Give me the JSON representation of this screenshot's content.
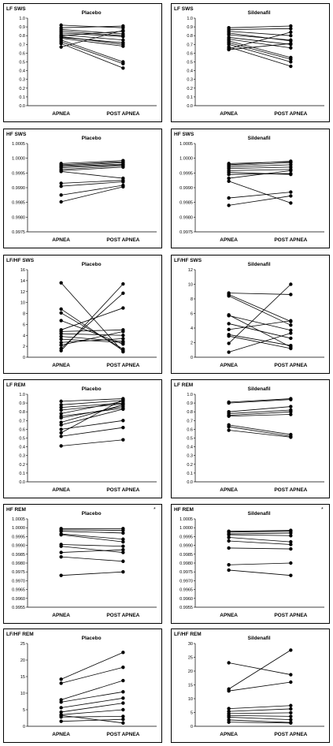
{
  "chart_data": [
    {
      "type": "line",
      "title": "Placebo",
      "ylabel": "LF SWS",
      "star": "",
      "categories": [
        "APNEA",
        "POST APNEA"
      ],
      "ylim": [
        0,
        1
      ],
      "yticks": [
        0,
        0.1,
        0.2,
        0.3,
        0.4,
        0.5,
        0.6,
        0.7,
        0.8,
        0.9,
        1.0
      ],
      "yticklabels": [
        "0.0",
        "0.1",
        "0.2",
        "0.3",
        "0.4",
        "0.5",
        "0.6",
        "0.7",
        "0.8",
        "0.9",
        "1.0"
      ],
      "series": [
        {
          "values": [
            0.92,
            0.89
          ]
        },
        {
          "values": [
            0.89,
            0.91
          ]
        },
        {
          "values": [
            0.87,
            0.82
          ]
        },
        {
          "values": [
            0.85,
            0.8
          ]
        },
        {
          "values": [
            0.83,
            0.79
          ]
        },
        {
          "values": [
            0.81,
            0.75
          ]
        },
        {
          "values": [
            0.79,
            0.7
          ]
        },
        {
          "values": [
            0.77,
            0.68
          ]
        },
        {
          "values": [
            0.75,
            0.5
          ]
        },
        {
          "values": [
            0.73,
            0.48
          ]
        },
        {
          "values": [
            0.71,
            0.43
          ]
        },
        {
          "values": [
            0.67,
            0.86
          ]
        },
        {
          "values": [
            0.8,
            0.85
          ]
        },
        {
          "values": [
            0.78,
            0.72
          ]
        }
      ]
    },
    {
      "type": "line",
      "title": "Sildenafil",
      "ylabel": "LF SWS",
      "star": "",
      "categories": [
        "APNEA",
        "POST APNEA"
      ],
      "ylim": [
        0,
        1
      ],
      "yticks": [
        0,
        0.1,
        0.2,
        0.3,
        0.4,
        0.5,
        0.6,
        0.7,
        0.8,
        0.9,
        1.0
      ],
      "yticklabels": [
        "0.0",
        "0.1",
        "0.2",
        "0.3",
        "0.4",
        "0.5",
        "0.6",
        "0.7",
        "0.8",
        "0.9",
        "1.0"
      ],
      "series": [
        {
          "values": [
            0.89,
            0.91
          ]
        },
        {
          "values": [
            0.87,
            0.88
          ]
        },
        {
          "values": [
            0.85,
            0.8
          ]
        },
        {
          "values": [
            0.83,
            0.74
          ]
        },
        {
          "values": [
            0.81,
            0.75
          ]
        },
        {
          "values": [
            0.78,
            0.7
          ]
        },
        {
          "values": [
            0.76,
            0.66
          ]
        },
        {
          "values": [
            0.74,
            0.55
          ]
        },
        {
          "values": [
            0.72,
            0.53
          ]
        },
        {
          "values": [
            0.7,
            0.5
          ]
        },
        {
          "values": [
            0.67,
            0.45
          ]
        },
        {
          "values": [
            0.65,
            0.84
          ]
        },
        {
          "values": [
            0.64,
            0.71
          ]
        }
      ]
    },
    {
      "type": "line",
      "title": "Placebo",
      "ylabel": "HF SWS",
      "star": "",
      "categories": [
        "APNEA",
        "POST APNEA"
      ],
      "ylim": [
        0.9975,
        1.0005
      ],
      "yticks": [
        0.9975,
        0.998,
        0.9985,
        0.999,
        0.9995,
        1.0,
        1.0005
      ],
      "yticklabels": [
        "0.9975",
        "0.9980",
        "0.9985",
        "0.9990",
        "0.9995",
        "1.0000",
        "1.0005"
      ],
      "series": [
        {
          "values": [
            0.99982,
            0.99992
          ]
        },
        {
          "values": [
            0.99978,
            0.99988
          ]
        },
        {
          "values": [
            0.99975,
            0.99985
          ]
        },
        {
          "values": [
            0.99972,
            0.9998
          ]
        },
        {
          "values": [
            0.99968,
            0.99978
          ]
        },
        {
          "values": [
            0.99962,
            0.99975
          ]
        },
        {
          "values": [
            0.99958,
            0.9997
          ]
        },
        {
          "values": [
            0.99955,
            0.99932
          ]
        },
        {
          "values": [
            0.99915,
            0.99925
          ]
        },
        {
          "values": [
            0.99905,
            0.9992
          ]
        },
        {
          "values": [
            0.99875,
            0.99908
          ]
        },
        {
          "values": [
            0.99852,
            0.99903
          ]
        }
      ]
    },
    {
      "type": "line",
      "title": "Sildenafil",
      "ylabel": "HF SWS",
      "star": "",
      "categories": [
        "APNEA",
        "POST APNEA"
      ],
      "ylim": [
        0.9975,
        1.0005
      ],
      "yticks": [
        0.9975,
        0.998,
        0.9985,
        0.999,
        0.9995,
        1.0,
        1.0005
      ],
      "yticklabels": [
        "0.9975",
        "0.9980",
        "0.9985",
        "0.9990",
        "0.9995",
        "1.0000",
        "1.0005"
      ],
      "series": [
        {
          "values": [
            0.99982,
            0.99988
          ]
        },
        {
          "values": [
            0.99978,
            0.9999
          ]
        },
        {
          "values": [
            0.99975,
            0.99985
          ]
        },
        {
          "values": [
            0.9997,
            0.99978
          ]
        },
        {
          "values": [
            0.99965,
            0.9997
          ]
        },
        {
          "values": [
            0.99958,
            0.99962
          ]
        },
        {
          "values": [
            0.99952,
            0.99945
          ]
        },
        {
          "values": [
            0.99945,
            0.99948
          ]
        },
        {
          "values": [
            0.99932,
            0.99958
          ]
        },
        {
          "values": [
            0.99922,
            0.99848
          ]
        },
        {
          "values": [
            0.99865,
            0.99885
          ]
        },
        {
          "values": [
            0.9984,
            0.99872
          ]
        }
      ]
    },
    {
      "type": "line",
      "title": "Placebo",
      "ylabel": "LF/HF SWS",
      "star": "",
      "categories": [
        "APNEA",
        "POST APNEA"
      ],
      "ylim": [
        0,
        16
      ],
      "yticks": [
        0,
        2,
        4,
        6,
        8,
        10,
        12,
        14,
        16
      ],
      "yticklabels": [
        "0",
        "2",
        "4",
        "6",
        "8",
        "10",
        "12",
        "14",
        "16"
      ],
      "series": [
        {
          "values": [
            13.6,
            1.0
          ]
        },
        {
          "values": [
            8.8,
            1.2
          ]
        },
        {
          "values": [
            8.1,
            1.5
          ]
        },
        {
          "values": [
            6.7,
            2.4
          ]
        },
        {
          "values": [
            5.0,
            9.0
          ]
        },
        {
          "values": [
            4.7,
            5.0
          ]
        },
        {
          "values": [
            4.3,
            4.0
          ]
        },
        {
          "values": [
            3.8,
            2.9
          ]
        },
        {
          "values": [
            3.3,
            2.7
          ]
        },
        {
          "values": [
            2.7,
            3.4
          ]
        },
        {
          "values": [
            2.2,
            4.7
          ]
        },
        {
          "values": [
            1.6,
            11.7
          ]
        },
        {
          "values": [
            1.2,
            13.4
          ]
        }
      ]
    },
    {
      "type": "line",
      "title": "Sildenafil",
      "ylabel": "LF/HF SWS",
      "star": "",
      "categories": [
        "APNEA",
        "POST APNEA"
      ],
      "ylim": [
        0,
        12
      ],
      "yticks": [
        0,
        2,
        4,
        6,
        8,
        10,
        12
      ],
      "yticklabels": [
        "0",
        "2",
        "4",
        "6",
        "8",
        "10",
        "12"
      ],
      "series": [
        {
          "values": [
            8.8,
            8.6
          ]
        },
        {
          "values": [
            8.6,
            4.9
          ]
        },
        {
          "values": [
            8.4,
            4.4
          ]
        },
        {
          "values": [
            5.8,
            1.4
          ]
        },
        {
          "values": [
            5.7,
            3.7
          ]
        },
        {
          "values": [
            4.6,
            2.6
          ]
        },
        {
          "values": [
            3.8,
            5.0
          ]
        },
        {
          "values": [
            3.1,
            1.6
          ]
        },
        {
          "values": [
            2.9,
            1.2
          ]
        },
        {
          "values": [
            1.9,
            10.0
          ]
        },
        {
          "values": [
            0.7,
            3.3
          ]
        }
      ]
    },
    {
      "type": "line",
      "title": "Placebo",
      "ylabel": "LF REM",
      "star": "",
      "categories": [
        "APNEA",
        "POST APNEA"
      ],
      "ylim": [
        0,
        1
      ],
      "yticks": [
        0,
        0.1,
        0.2,
        0.3,
        0.4,
        0.5,
        0.6,
        0.7,
        0.8,
        0.9,
        1.0
      ],
      "yticklabels": [
        "0.0",
        "0.1",
        "0.2",
        "0.3",
        "0.4",
        "0.5",
        "0.6",
        "0.7",
        "0.8",
        "0.9",
        "1.0"
      ],
      "series": [
        {
          "values": [
            0.92,
            0.95
          ]
        },
        {
          "values": [
            0.88,
            0.93
          ]
        },
        {
          "values": [
            0.85,
            0.9
          ]
        },
        {
          "values": [
            0.82,
            0.89
          ]
        },
        {
          "values": [
            0.78,
            0.92
          ]
        },
        {
          "values": [
            0.75,
            0.84
          ]
        },
        {
          "values": [
            0.73,
            0.86
          ]
        },
        {
          "values": [
            0.68,
            0.88
          ]
        },
        {
          "values": [
            0.65,
            0.83
          ]
        },
        {
          "values": [
            0.6,
            0.7
          ]
        },
        {
          "values": [
            0.56,
            0.94
          ]
        },
        {
          "values": [
            0.52,
            0.62
          ]
        },
        {
          "values": [
            0.41,
            0.48
          ]
        }
      ]
    },
    {
      "type": "line",
      "title": "Sildenafil",
      "ylabel": "LF REM",
      "star": "",
      "categories": [
        "APNEA",
        "POST APNEA"
      ],
      "ylim": [
        0,
        1
      ],
      "yticks": [
        0,
        0.1,
        0.2,
        0.3,
        0.4,
        0.5,
        0.6,
        0.7,
        0.8,
        0.9,
        1.0
      ],
      "yticklabels": [
        "0.0",
        "0.1",
        "0.2",
        "0.3",
        "0.4",
        "0.5",
        "0.6",
        "0.7",
        "0.8",
        "0.9",
        "1.0"
      ],
      "series": [
        {
          "values": [
            0.91,
            0.95
          ]
        },
        {
          "values": [
            0.9,
            0.94
          ]
        },
        {
          "values": [
            0.8,
            0.86
          ]
        },
        {
          "values": [
            0.78,
            0.82
          ]
        },
        {
          "values": [
            0.76,
            0.8
          ]
        },
        {
          "values": [
            0.75,
            0.77
          ]
        },
        {
          "values": [
            0.65,
            0.54
          ]
        },
        {
          "values": [
            0.63,
            0.52
          ]
        },
        {
          "values": [
            0.59,
            0.51
          ]
        }
      ]
    },
    {
      "type": "line",
      "title": "Placebo",
      "ylabel": "HF REM",
      "star": "*",
      "categories": [
        "APNEA",
        "POST APNEA"
      ],
      "ylim": [
        0.9955,
        1.0005
      ],
      "yticks": [
        0.9955,
        0.996,
        0.9965,
        0.997,
        0.9975,
        0.998,
        0.9985,
        0.999,
        0.9995,
        1.0,
        1.0005
      ],
      "yticklabels": [
        "0.9955",
        "0.9960",
        "0.9965",
        "0.9970",
        "0.9975",
        "0.9980",
        "0.9985",
        "0.9990",
        "0.9995",
        "1.0000",
        "1.0005"
      ],
      "series": [
        {
          "values": [
            0.99995,
            0.99995
          ]
        },
        {
          "values": [
            0.99988,
            0.99985
          ]
        },
        {
          "values": [
            0.9998,
            0.9997
          ]
        },
        {
          "values": [
            0.99965,
            0.99935
          ]
        },
        {
          "values": [
            0.9996,
            0.9992
          ]
        },
        {
          "values": [
            0.99905,
            0.99895
          ]
        },
        {
          "values": [
            0.99895,
            0.9986
          ]
        },
        {
          "values": [
            0.9986,
            0.99875
          ]
        },
        {
          "values": [
            0.99835,
            0.9981
          ]
        },
        {
          "values": [
            0.9973,
            0.9975
          ]
        }
      ]
    },
    {
      "type": "line",
      "title": "Sildenafil",
      "ylabel": "HF REM",
      "star": "*",
      "categories": [
        "APNEA",
        "POST APNEA"
      ],
      "ylim": [
        0.9955,
        1.0005
      ],
      "yticks": [
        0.9955,
        0.996,
        0.9965,
        0.997,
        0.9975,
        0.998,
        0.9985,
        0.999,
        0.9995,
        1.0,
        1.0005
      ],
      "yticklabels": [
        "0.9955",
        "0.9960",
        "0.9965",
        "0.9970",
        "0.9975",
        "0.9980",
        "0.9985",
        "0.9990",
        "0.9995",
        "1.0000",
        "1.0005"
      ],
      "series": [
        {
          "values": [
            0.9998,
            0.99985
          ]
        },
        {
          "values": [
            0.99975,
            0.9998
          ]
        },
        {
          "values": [
            0.99965,
            0.9997
          ]
        },
        {
          "values": [
            0.9996,
            0.99955
          ]
        },
        {
          "values": [
            0.99945,
            0.9992
          ]
        },
        {
          "values": [
            0.99925,
            0.99905
          ]
        },
        {
          "values": [
            0.99885,
            0.9988
          ]
        },
        {
          "values": [
            0.9979,
            0.998
          ]
        },
        {
          "values": [
            0.9976,
            0.9973
          ]
        }
      ]
    },
    {
      "type": "line",
      "title": "Placebo",
      "ylabel": "LF/HF  REM",
      "star": "",
      "categories": [
        "APNEA",
        "POST APNEA"
      ],
      "ylim": [
        0,
        25
      ],
      "yticks": [
        0,
        5,
        10,
        15,
        20,
        25
      ],
      "yticklabels": [
        "0",
        "5",
        "10",
        "15",
        "20",
        "25"
      ],
      "series": [
        {
          "values": [
            14.2,
            22.3
          ]
        },
        {
          "values": [
            13.0,
            17.8
          ]
        },
        {
          "values": [
            8.0,
            13.8
          ]
        },
        {
          "values": [
            7.3,
            10.4
          ]
        },
        {
          "values": [
            5.6,
            8.5
          ]
        },
        {
          "values": [
            4.3,
            7.0
          ]
        },
        {
          "values": [
            3.5,
            5.0
          ]
        },
        {
          "values": [
            2.8,
            3.0
          ]
        },
        {
          "values": [
            1.5,
            2.1
          ]
        },
        {
          "values": [
            3.3,
            1.0
          ]
        }
      ]
    },
    {
      "type": "line",
      "title": "Sildenafil",
      "ylabel": "LF/HF  REM",
      "star": "",
      "categories": [
        "APNEA",
        "POST APNEA"
      ],
      "ylim": [
        0,
        30
      ],
      "yticks": [
        0,
        5,
        10,
        15,
        20,
        25,
        30
      ],
      "yticklabels": [
        "0",
        "5",
        "10",
        "15",
        "20",
        "25",
        "30"
      ],
      "series": [
        {
          "values": [
            23.0,
            18.7
          ]
        },
        {
          "values": [
            13.5,
            27.6
          ]
        },
        {
          "values": [
            12.8,
            16.0
          ]
        },
        {
          "values": [
            6.4,
            7.5
          ]
        },
        {
          "values": [
            5.4,
            6.3
          ]
        },
        {
          "values": [
            4.6,
            4.9
          ]
        },
        {
          "values": [
            3.9,
            3.6
          ]
        },
        {
          "values": [
            3.3,
            2.4
          ]
        },
        {
          "values": [
            2.3,
            1.4
          ]
        },
        {
          "values": [
            1.5,
            1.2
          ]
        }
      ]
    }
  ]
}
